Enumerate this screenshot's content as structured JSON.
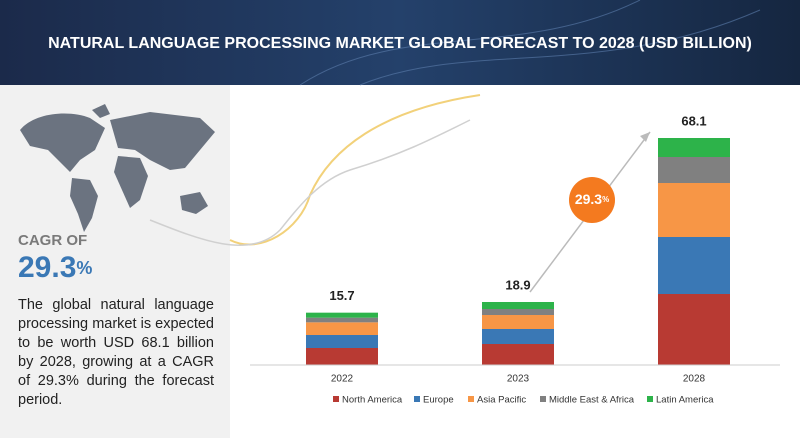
{
  "chart_data": {
    "type": "bar",
    "stacked": true,
    "title": "NATURAL LANGUAGE PROCESSING MARKET GLOBAL FORECAST TO 2028 (USD BILLION)",
    "categories": [
      "2022",
      "2023",
      "2028"
    ],
    "series": [
      {
        "name": "North America",
        "color": "#b83a33",
        "values": [
          5.1,
          6.3,
          21.3
        ]
      },
      {
        "name": "Europe",
        "color": "#3a78b5",
        "values": [
          3.9,
          4.5,
          17.1
        ]
      },
      {
        "name": "Asia Pacific",
        "color": "#f79646",
        "values": [
          3.8,
          4.2,
          16.2
        ]
      },
      {
        "name": "Middle East & Africa",
        "color": "#808080",
        "values": [
          1.4,
          1.8,
          7.8
        ]
      },
      {
        "name": "Latin America",
        "color": "#2db34a",
        "values": [
          1.5,
          2.1,
          5.7
        ]
      }
    ],
    "totals": [
      15.7,
      18.9,
      68.1
    ],
    "badge": {
      "value": "29.3",
      "unit": "%"
    },
    "legend": "bottom"
  },
  "sidebar": {
    "cagr_label": "CAGR OF",
    "cagr_value": "29.3",
    "cagr_unit": "%",
    "description": "The global natural language processing market is expected to be worth USD 68.1 billion by 2028, growing at a CAGR of 29.3% during the forecast period."
  }
}
